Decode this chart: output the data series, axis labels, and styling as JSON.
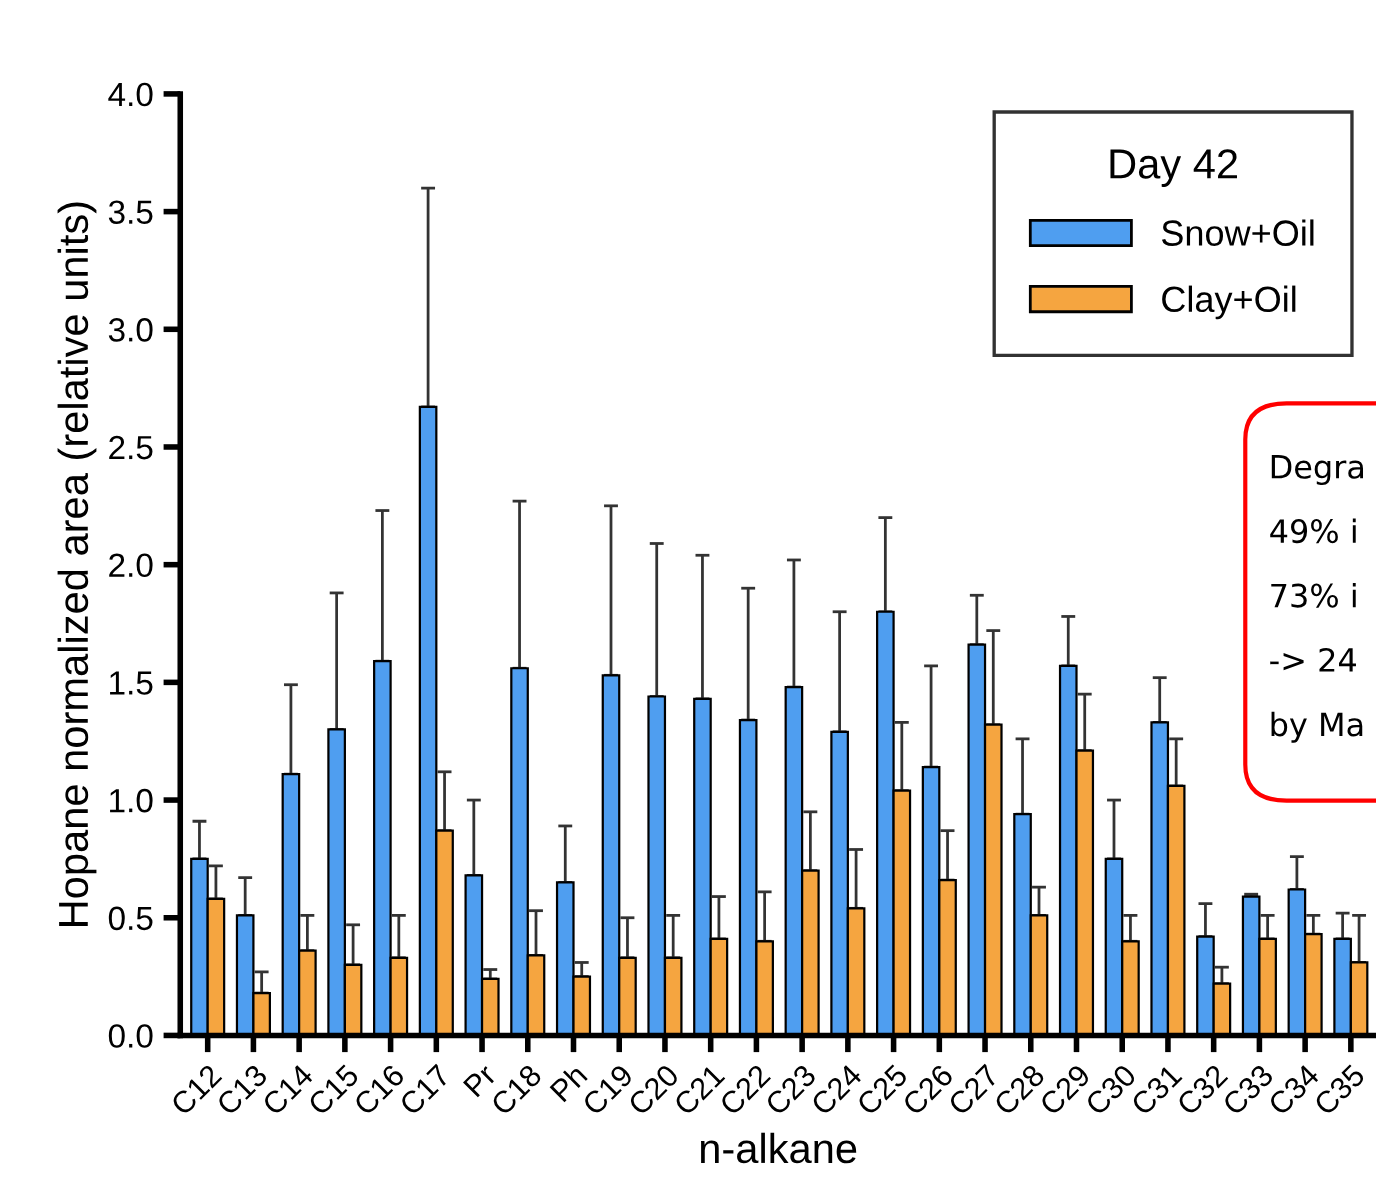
{
  "chart_data": {
    "type": "bar",
    "ylabel": "Hopane normalized area (relative units)",
    "xlabel": "n-alkane",
    "legend_title": "Day 42",
    "legend": "top right",
    "categories": [
      "C12",
      "C13",
      "C14",
      "C15",
      "C16",
      "C17",
      "Pr",
      "C18",
      "Ph",
      "C19",
      "C20",
      "C21",
      "C22",
      "C23",
      "C24",
      "C25",
      "C26",
      "C27",
      "C28",
      "C29",
      "C30",
      "C31",
      "C32",
      "C33",
      "C34",
      "C35"
    ],
    "series": [
      {
        "name": "Snow+Oil",
        "color": "#4f9ef0",
        "values": [
          0.75,
          0.51,
          1.11,
          1.3,
          1.59,
          2.67,
          0.68,
          1.56,
          0.65,
          1.53,
          1.44,
          1.43,
          1.34,
          1.48,
          1.29,
          1.8,
          1.14,
          1.66,
          0.94,
          1.57,
          0.75,
          1.33,
          0.42,
          0.59,
          0.62,
          0.41
        ],
        "errors": [
          [
            0.75,
            0.91
          ],
          [
            0.51,
            0.67
          ],
          [
            1.11,
            1.49
          ],
          [
            1.3,
            1.88
          ],
          [
            1.59,
            2.23
          ],
          [
            2.67,
            3.6
          ],
          [
            0.68,
            1.0
          ],
          [
            1.56,
            2.27
          ],
          [
            0.65,
            0.89
          ],
          [
            1.53,
            2.25
          ],
          [
            1.44,
            2.09
          ],
          [
            1.43,
            2.04
          ],
          [
            1.34,
            1.9
          ],
          [
            1.48,
            2.02
          ],
          [
            1.29,
            1.8
          ],
          [
            1.8,
            2.2
          ],
          [
            1.14,
            1.57
          ],
          [
            1.66,
            1.87
          ],
          [
            0.94,
            1.26
          ],
          [
            1.57,
            1.78
          ],
          [
            0.75,
            1.0
          ],
          [
            1.33,
            1.52
          ],
          [
            0.42,
            0.56
          ],
          [
            0.59,
            0.6
          ],
          [
            0.62,
            0.76
          ],
          [
            0.41,
            0.52
          ]
        ]
      },
      {
        "name": "Clay+Oil",
        "color": "#f5a540",
        "values": [
          0.58,
          0.18,
          0.36,
          0.3,
          0.33,
          0.87,
          0.24,
          0.34,
          0.25,
          0.33,
          0.33,
          0.41,
          0.4,
          0.7,
          0.54,
          1.04,
          0.66,
          1.32,
          0.51,
          1.21,
          0.4,
          1.06,
          0.22,
          0.41,
          0.43,
          0.31
        ],
        "errors": [
          [
            0.58,
            0.72
          ],
          [
            0.18,
            0.27
          ],
          [
            0.36,
            0.51
          ],
          [
            0.3,
            0.47
          ],
          [
            0.33,
            0.51
          ],
          [
            0.87,
            1.12
          ],
          [
            0.24,
            0.28
          ],
          [
            0.34,
            0.53
          ],
          [
            0.25,
            0.31
          ],
          [
            0.33,
            0.5
          ],
          [
            0.33,
            0.51
          ],
          [
            0.41,
            0.59
          ],
          [
            0.4,
            0.61
          ],
          [
            0.7,
            0.95
          ],
          [
            0.54,
            0.79
          ],
          [
            1.04,
            1.33
          ],
          [
            0.66,
            0.87
          ],
          [
            1.32,
            1.72
          ],
          [
            0.51,
            0.63
          ],
          [
            1.21,
            1.45
          ],
          [
            0.4,
            0.51
          ],
          [
            1.06,
            1.26
          ],
          [
            0.22,
            0.29
          ],
          [
            0.41,
            0.51
          ],
          [
            0.43,
            0.51
          ],
          [
            0.31,
            0.51
          ]
        ]
      }
    ],
    "ylim": [
      0,
      4.0
    ],
    "yticks": [
      {
        "value": 0,
        "label": "0.0"
      },
      {
        "value": 0.5,
        "label": "0.5"
      },
      {
        "value": 1,
        "label": "1.0"
      },
      {
        "value": 1.5,
        "label": "1.5"
      },
      {
        "value": 2,
        "label": "2.0"
      },
      {
        "value": 2.5,
        "label": "2.5"
      },
      {
        "value": 3,
        "label": "3.0"
      },
      {
        "value": 3.5,
        "label": "3.5"
      },
      {
        "value": 4,
        "label": "4.0"
      }
    ],
    "grid": false,
    "annotations": [
      "Degra",
      "49% i",
      "73% i",
      "-> 24",
      "by Ma"
    ]
  }
}
